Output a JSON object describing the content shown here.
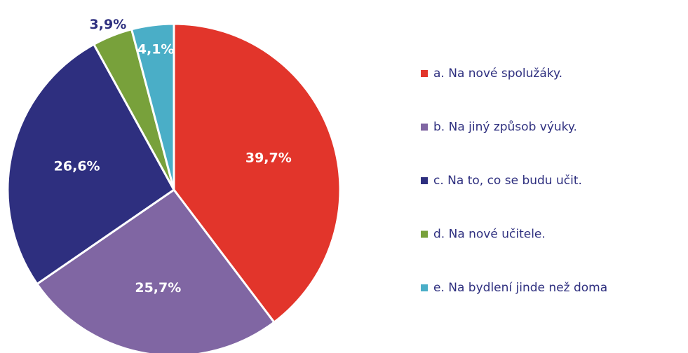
{
  "chart_data": {
    "type": "pie",
    "categories": [
      "a. Na nové spolužáky.",
      "b. Na jiný způsob výuky.",
      "c. Na to, co se budu učit.",
      "d. Na nové učitele.",
      "e. Na bydlení jinde než doma"
    ],
    "values": [
      39.7,
      25.7,
      26.6,
      3.9,
      4.1
    ],
    "value_labels": [
      "39,7%",
      "25,7%",
      "26,6%",
      "3,9%",
      "4,1%"
    ],
    "colors": [
      "#e2352b",
      "#8066a3",
      "#2e2f7f",
      "#78a13b",
      "#4aaec7"
    ],
    "legend": "right"
  }
}
